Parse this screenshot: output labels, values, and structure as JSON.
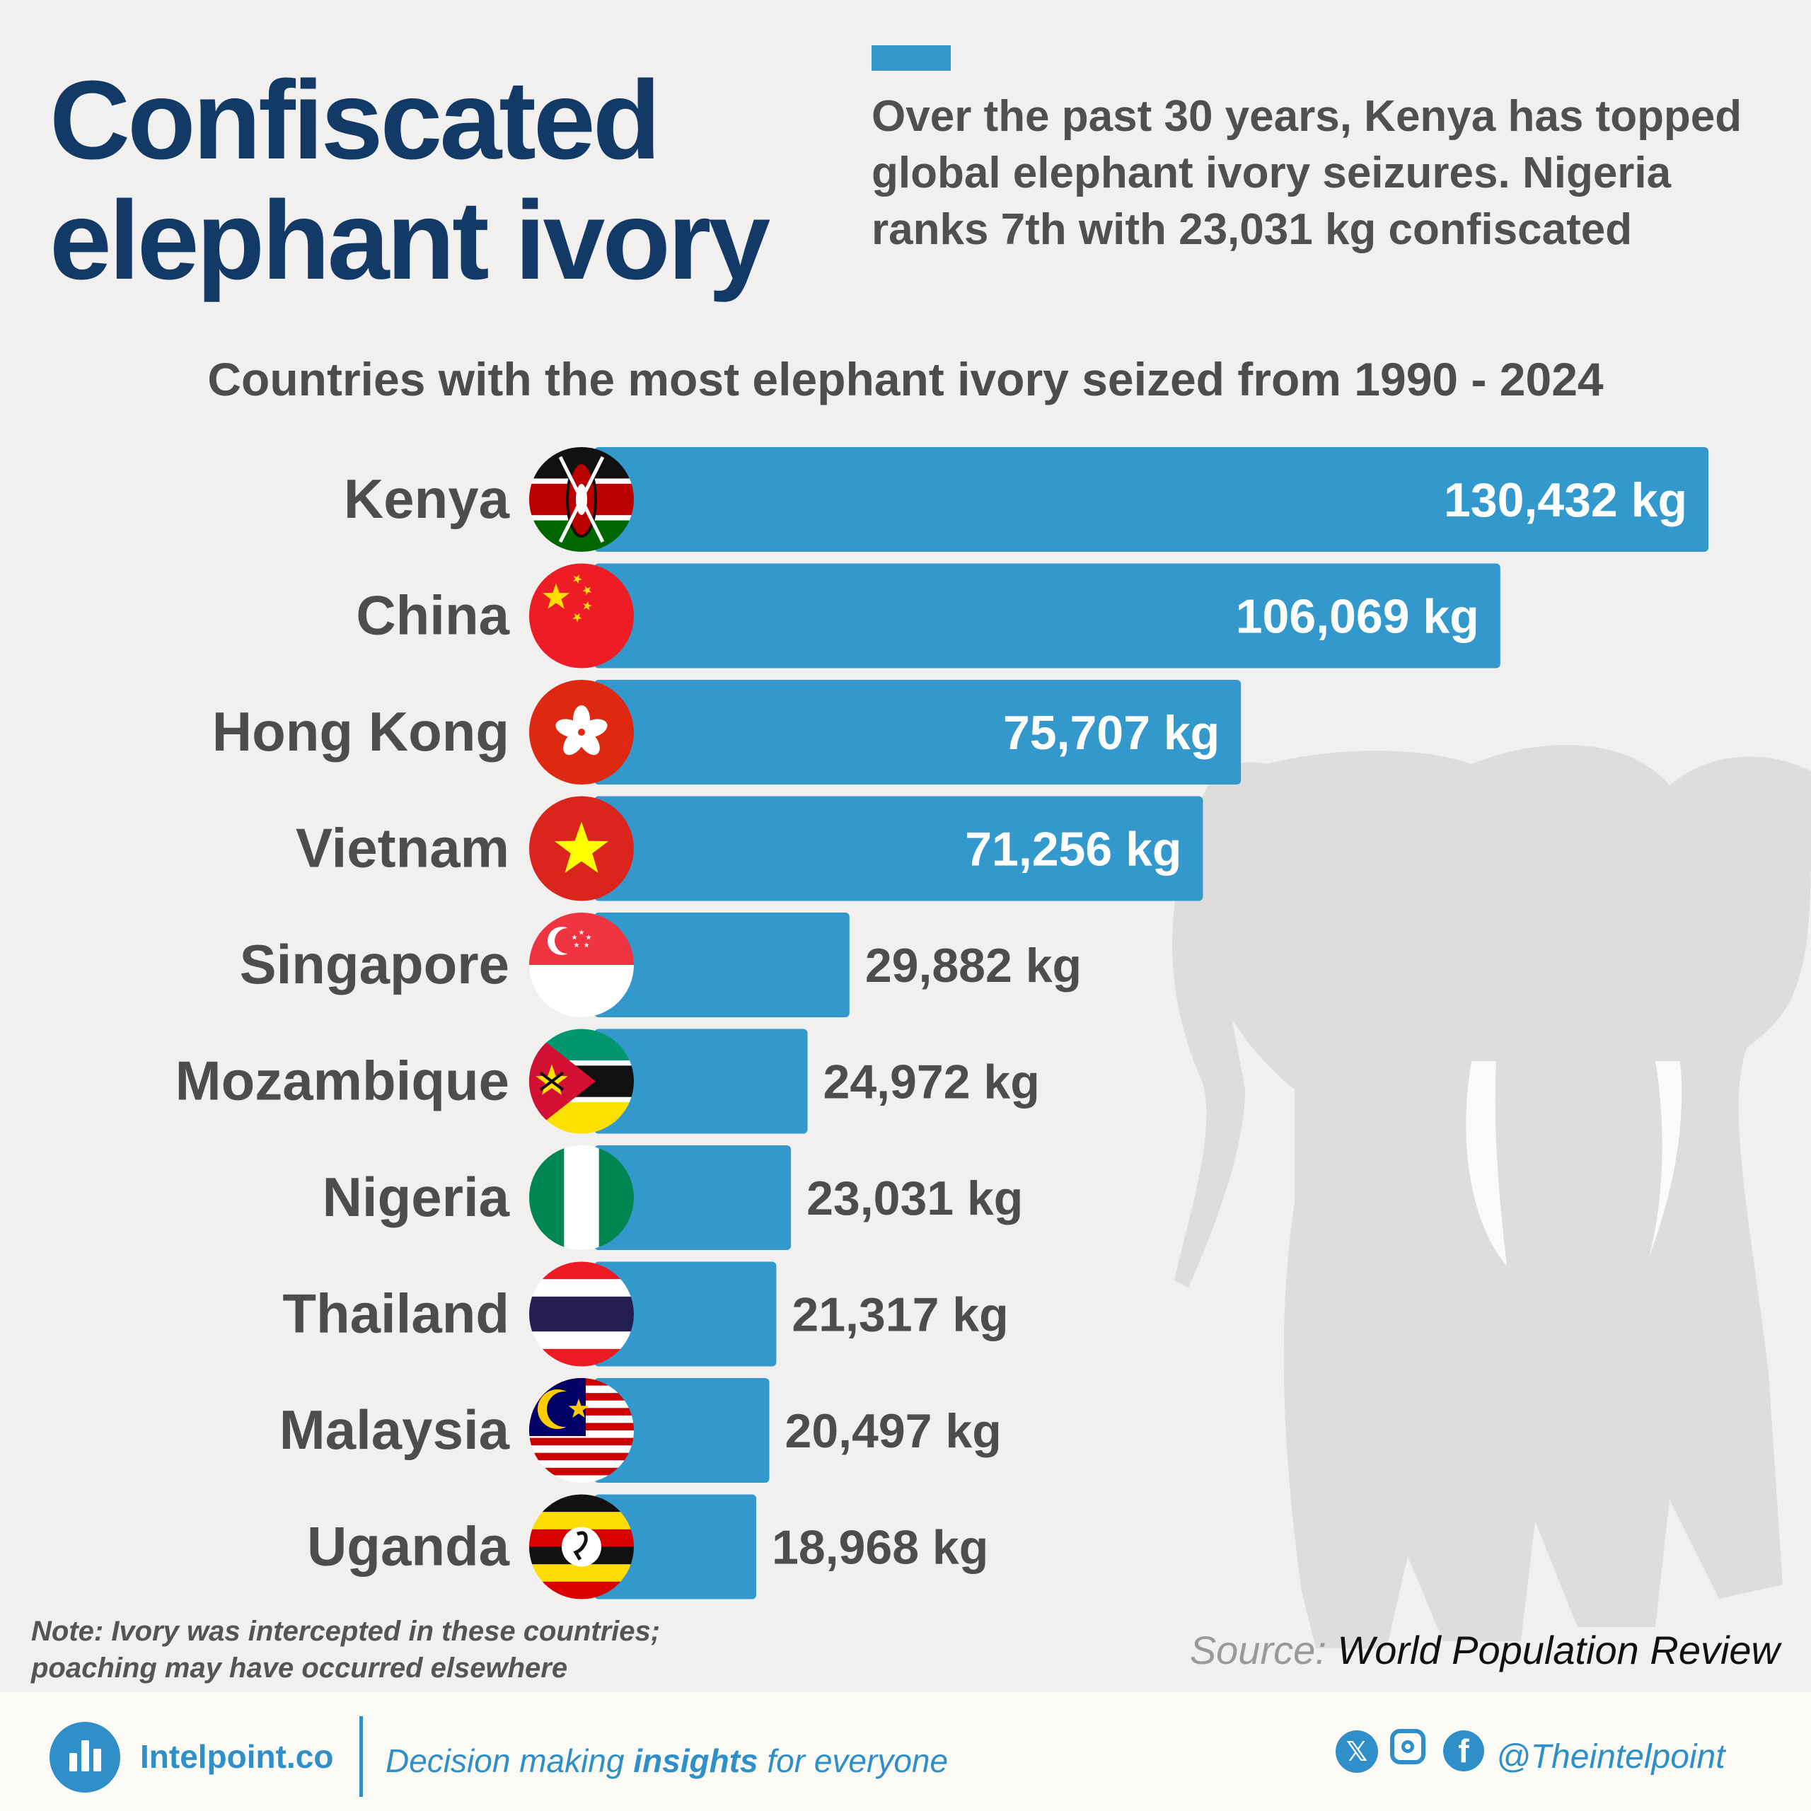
{
  "header": {
    "title_line1": "Confiscated",
    "title_line2": "elephant ivory",
    "subtitle": "Over the past 30 years, Kenya has topped global elephant ivory seizures. Nigeria ranks 7th with 23,031 kg confiscated"
  },
  "colors": {
    "bar": "#3399cc",
    "title": "#133a66",
    "label_text": "#4d4d4d",
    "value_inside": "#ffffff",
    "value_outside": "#4d4d4d",
    "background": "#f1f0ef",
    "footer_bg": "#fbfaf4",
    "brand": "#2e8fc9"
  },
  "chart_data": {
    "type": "bar",
    "orientation": "horizontal",
    "title": "Countries with the most elephant ivory seized from 1990 - 2024",
    "unit": "kg",
    "categories": [
      "Kenya",
      "China",
      "Hong Kong",
      "Vietnam",
      "Singapore",
      "Mozambique",
      "Nigeria",
      "Thailand",
      "Malaysia",
      "Uganda"
    ],
    "values": [
      130432,
      106069,
      75707,
      71256,
      29882,
      24972,
      23031,
      21317,
      20497,
      18968
    ],
    "value_labels": [
      "130,432 kg",
      "106,069 kg",
      "75,707 kg",
      "71,256 kg",
      "29,882 kg",
      "24,972 kg",
      "23,031 kg",
      "21,317 kg",
      "20,497 kg",
      "18,968 kg"
    ],
    "flags": [
      "kenya-flag-icon",
      "china-flag-icon",
      "hong-kong-flag-icon",
      "vietnam-flag-icon",
      "singapore-flag-icon",
      "mozambique-flag-icon",
      "nigeria-flag-icon",
      "thailand-flag-icon",
      "malaysia-flag-icon",
      "uganda-flag-icon"
    ],
    "labels_inside_bar_count": 4,
    "xlim": [
      0,
      130432
    ],
    "grid": false,
    "legend": "none"
  },
  "note": {
    "line1": "Note: Ivory was intercepted in these countries;",
    "line2": "poaching may have occurred elsewhere"
  },
  "source": {
    "label": "Source:",
    "name": "World Population Review"
  },
  "footer": {
    "brand": "Intelpoint.co",
    "tagline_pre": "Decision making ",
    "tagline_bold": "insights",
    "tagline_post": " for everyone",
    "handle": "@Theintelpoint",
    "icons": [
      "x-icon",
      "instagram-icon",
      "facebook-icon"
    ]
  }
}
